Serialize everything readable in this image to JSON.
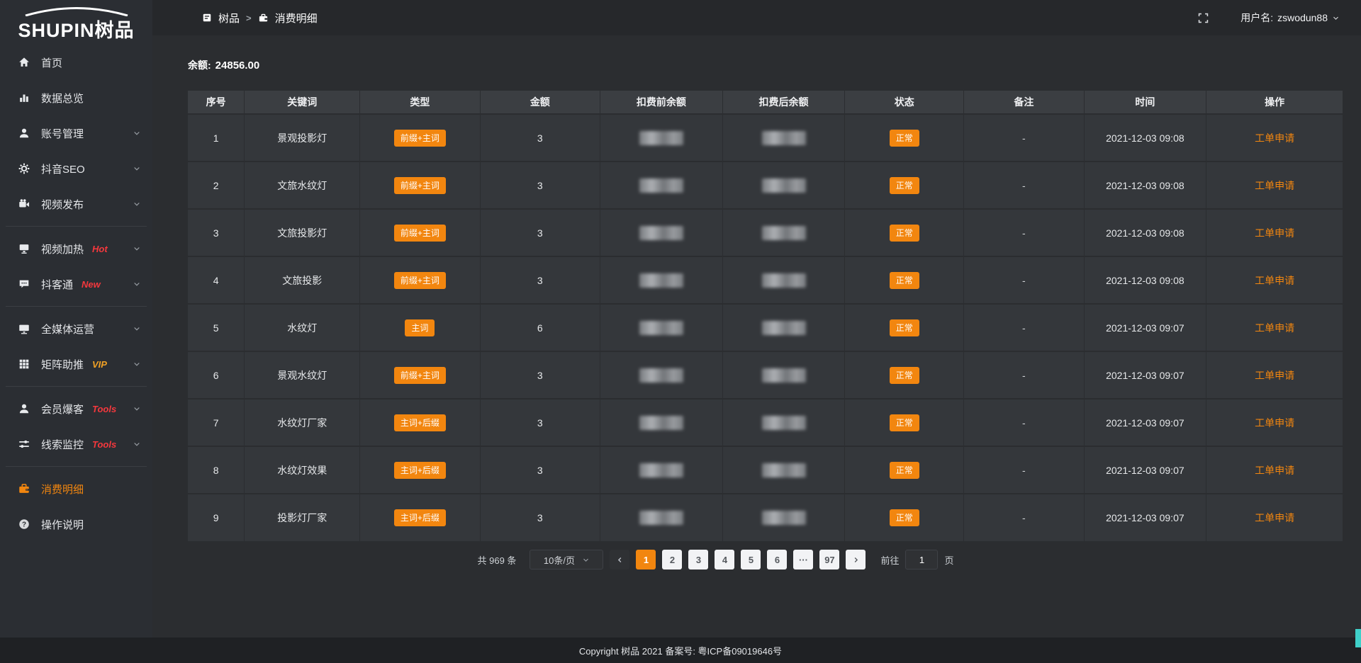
{
  "logo": {
    "text": "SHUPIN树品"
  },
  "header": {
    "breadcrumb": [
      {
        "label": "树品"
      },
      {
        "label": "消费明细"
      }
    ],
    "separator": ">",
    "user_label": "用户名:",
    "username": "zswodun88"
  },
  "sidebar": {
    "items": [
      {
        "label": "首页",
        "icon": "home-icon"
      },
      {
        "label": "数据总览",
        "icon": "bar-chart-icon"
      },
      {
        "label": "账号管理",
        "icon": "user-icon",
        "chevron": true
      },
      {
        "label": "抖音SEO",
        "icon": "gear-icon",
        "chevron": true
      },
      {
        "label": "视频发布",
        "icon": "video-icon",
        "chevron": true
      },
      {
        "label": "视频加热",
        "icon": "heat-screen-icon",
        "badge": "Hot",
        "chevron": true
      },
      {
        "label": "抖客通",
        "icon": "chat-icon",
        "badge": "New",
        "chevron": true
      },
      {
        "label": "全媒体运营",
        "icon": "monitor-icon",
        "chevron": true
      },
      {
        "label": "矩阵助推",
        "icon": "grid-icon",
        "badge": "VIP",
        "chevron": true
      },
      {
        "label": "会员爆客",
        "icon": "member-icon",
        "badge": "Tools",
        "chevron": true
      },
      {
        "label": "线索监控",
        "icon": "sliders-icon",
        "badge": "Tools",
        "chevron": true
      },
      {
        "label": "消费明细",
        "icon": "wallet-icon",
        "active": true
      },
      {
        "label": "操作说明",
        "icon": "question-icon"
      }
    ]
  },
  "balance": {
    "label": "余额:",
    "value": "24856.00"
  },
  "table": {
    "columns": [
      "序号",
      "关键词",
      "类型",
      "金额",
      "扣费前余额",
      "扣费后余额",
      "状态",
      "备注",
      "时间",
      "操作"
    ],
    "rows": [
      {
        "no": "1",
        "keyword": "景观投影灯",
        "type": "前缀+主词",
        "amount": "3",
        "status": "正常",
        "remark": "-",
        "time": "2021-12-03 09:08",
        "action": "工单申请"
      },
      {
        "no": "2",
        "keyword": "文旅水纹灯",
        "type": "前缀+主词",
        "amount": "3",
        "status": "正常",
        "remark": "-",
        "time": "2021-12-03 09:08",
        "action": "工单申请"
      },
      {
        "no": "3",
        "keyword": "文旅投影灯",
        "type": "前缀+主词",
        "amount": "3",
        "status": "正常",
        "remark": "-",
        "time": "2021-12-03 09:08",
        "action": "工单申请"
      },
      {
        "no": "4",
        "keyword": "文旅投影",
        "type": "前缀+主词",
        "amount": "3",
        "status": "正常",
        "remark": "-",
        "time": "2021-12-03 09:08",
        "action": "工单申请"
      },
      {
        "no": "5",
        "keyword": "水纹灯",
        "type": "主词",
        "amount": "6",
        "status": "正常",
        "remark": "-",
        "time": "2021-12-03 09:07",
        "action": "工单申请"
      },
      {
        "no": "6",
        "keyword": "景观水纹灯",
        "type": "前缀+主词",
        "amount": "3",
        "status": "正常",
        "remark": "-",
        "time": "2021-12-03 09:07",
        "action": "工单申请"
      },
      {
        "no": "7",
        "keyword": "水纹灯厂家",
        "type": "主词+后缀",
        "amount": "3",
        "status": "正常",
        "remark": "-",
        "time": "2021-12-03 09:07",
        "action": "工单申请"
      },
      {
        "no": "8",
        "keyword": "水纹灯效果",
        "type": "主词+后缀",
        "amount": "3",
        "status": "正常",
        "remark": "-",
        "time": "2021-12-03 09:07",
        "action": "工单申请"
      },
      {
        "no": "9",
        "keyword": "投影灯厂家",
        "type": "主词+后缀",
        "amount": "3",
        "status": "正常",
        "remark": "-",
        "time": "2021-12-03 09:07",
        "action": "工单申请"
      }
    ],
    "masked_columns": [
      "扣费前余额",
      "扣费后余额"
    ]
  },
  "pagination": {
    "total": "共 969 条",
    "page_size": "10条/页",
    "pages": [
      "1",
      "2",
      "3",
      "4",
      "5",
      "6",
      "···",
      "97"
    ],
    "active_page": "1",
    "goto_label": "前往",
    "goto_value": "1",
    "goto_suffix": "页"
  },
  "footer": {
    "copyright": "Copyright 树品 2021 备案号: 粤ICP备09019646号"
  },
  "colors": {
    "accent_orange": "#f2860f",
    "badge_red": "#f5383d",
    "vip_gold": "#f0a125",
    "scrollbar_teal": "#3fd0c9"
  }
}
